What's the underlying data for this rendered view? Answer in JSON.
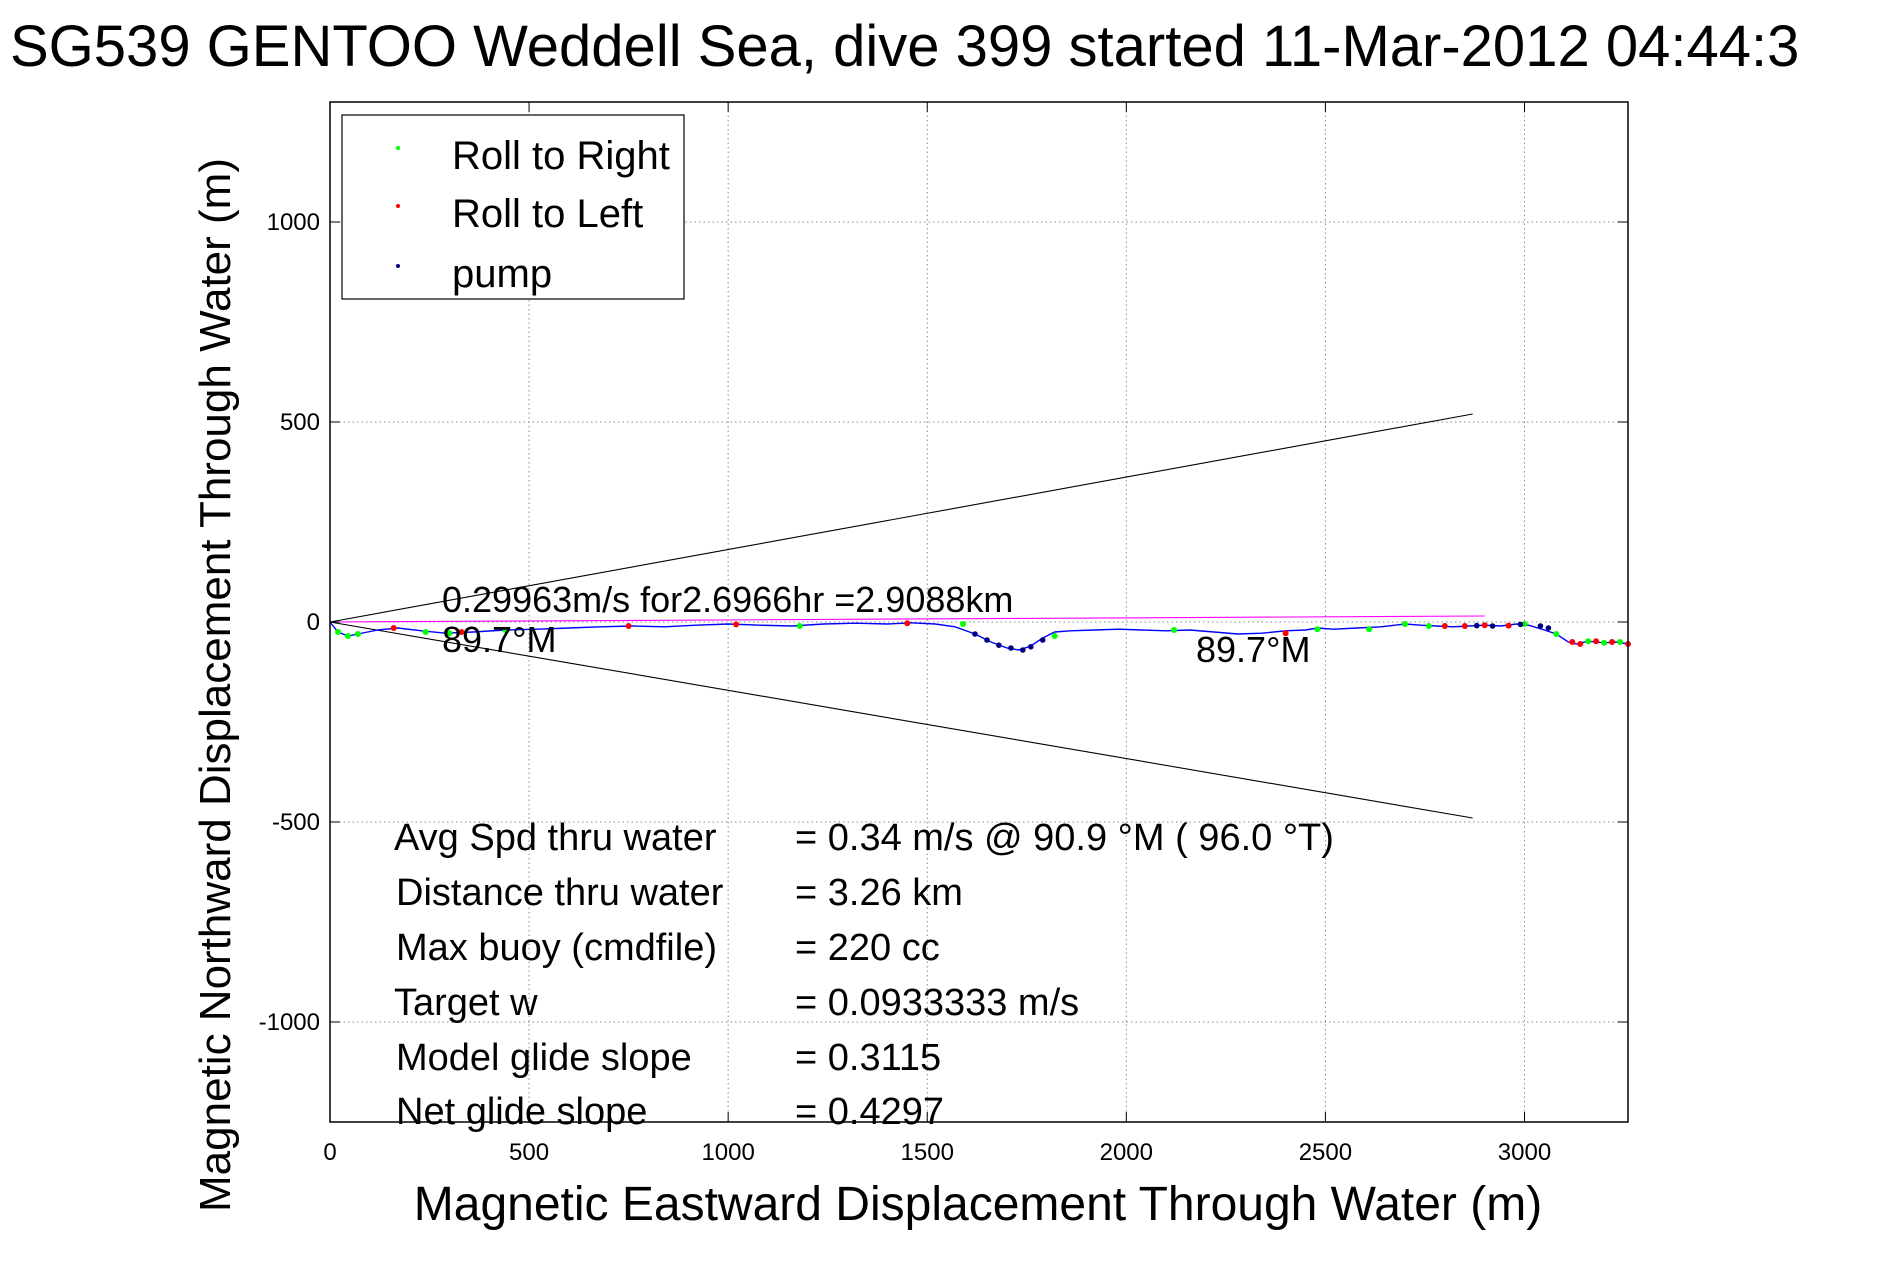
{
  "chart_data": {
    "type": "line",
    "title": "SG539 GENTOO Weddell Sea, dive 399 started 11-Mar-2012 04:44:3",
    "xlabel": "Magnetic Eastward Displacement Through Water (m)",
    "ylabel": "Magnetic Northward Displacement Through Water (m)",
    "xlim": [
      0,
      3260
    ],
    "ylim": [
      -1250,
      1300
    ],
    "xticks": [
      0,
      500,
      1000,
      1500,
      2000,
      2500,
      3000
    ],
    "yticks": [
      -1000,
      -500,
      0,
      500,
      1000
    ],
    "xtick_labels": [
      "0",
      "500",
      "1000",
      "1500",
      "2000",
      "2500",
      "3000"
    ],
    "ytick_labels": [
      "-1000",
      "-500",
      "0",
      "500",
      "1000"
    ],
    "grid": true,
    "legend_position": "top-left",
    "legend": [
      {
        "label": "Roll to Right",
        "color": "#00ff00"
      },
      {
        "label": "Roll to Left",
        "color": "#ff0000"
      },
      {
        "label": "pump",
        "color": "#000080"
      }
    ],
    "series": [
      {
        "role": "track",
        "color": "#0000ff",
        "x": [
          0,
          20,
          45,
          70,
          120,
          170,
          230,
          290,
          360,
          440,
          520,
          600,
          680,
          760,
          840,
          920,
          1000,
          1080,
          1160,
          1240,
          1320,
          1400,
          1460,
          1520,
          1570,
          1620,
          1660,
          1700,
          1730,
          1760,
          1790,
          1820,
          1860,
          1920,
          1980,
          2040,
          2100,
          2160,
          2220,
          2280,
          2340,
          2400,
          2450,
          2480,
          2520,
          2580,
          2640,
          2700,
          2740,
          2780,
          2820,
          2860,
          2900,
          2940,
          2980,
          3010,
          3050,
          3080,
          3110,
          3130,
          3160,
          3200,
          3230,
          3260
        ],
        "y": [
          0,
          -25,
          -35,
          -30,
          -20,
          -15,
          -22,
          -28,
          -25,
          -20,
          -18,
          -15,
          -12,
          -10,
          -12,
          -8,
          -5,
          -8,
          -10,
          -5,
          -3,
          -5,
          -2,
          -5,
          -12,
          -30,
          -50,
          -65,
          -70,
          -60,
          -40,
          -25,
          -22,
          -20,
          -18,
          -20,
          -22,
          -20,
          -25,
          -30,
          -28,
          -22,
          -20,
          -15,
          -18,
          -15,
          -12,
          -5,
          -8,
          -10,
          -12,
          -10,
          -8,
          -10,
          -5,
          -8,
          -20,
          -30,
          -50,
          -55,
          -48,
          -52,
          -50,
          -55
        ]
      },
      {
        "role": "roll-right-points",
        "color": "#00ff00",
        "x": [
          20,
          45,
          70,
          240,
          300,
          440,
          1180,
          1590,
          1820,
          2120,
          2480,
          2610,
          2700,
          2760,
          3000,
          3080,
          3160,
          3200,
          3240
        ],
        "y": [
          -25,
          -35,
          -30,
          -25,
          -28,
          -20,
          -10,
          -5,
          -35,
          -20,
          -18,
          -18,
          -5,
          -10,
          -5,
          -30,
          -48,
          -52,
          -50
        ]
      },
      {
        "role": "roll-left-points",
        "color": "#ff0000",
        "x": [
          160,
          330,
          750,
          1020,
          1450,
          2400,
          2800,
          2850,
          2900,
          2960,
          3120,
          3140,
          3180,
          3220,
          3260
        ],
        "y": [
          -15,
          -25,
          -10,
          -6,
          -3,
          -28,
          -10,
          -10,
          -8,
          -9,
          -50,
          -55,
          -48,
          -50,
          -55
        ]
      },
      {
        "role": "pump-points",
        "color": "#000080",
        "x": [
          1620,
          1650,
          1680,
          1710,
          1740,
          1760,
          1790,
          2880,
          2920,
          2990,
          3040,
          3060
        ],
        "y": [
          -30,
          -45,
          -58,
          -65,
          -70,
          -62,
          -45,
          -9,
          -10,
          -6,
          -10,
          -15
        ]
      },
      {
        "role": "heading-line",
        "color": "#ff00ff",
        "x": [
          0,
          2900
        ],
        "y": [
          0,
          15
        ]
      },
      {
        "role": "cone-upper",
        "color": "#000000",
        "x": [
          0,
          2870
        ],
        "y": [
          0,
          520
        ]
      },
      {
        "role": "cone-lower",
        "color": "#000000",
        "x": [
          0,
          2870
        ],
        "y": [
          0,
          -490
        ]
      }
    ],
    "annotations": {
      "speed_line": "0.29963m/s for2.6966hr =2.9088km",
      "heading_left": "89.7°M",
      "heading_right": "89.7°M"
    },
    "stats": [
      {
        "label": "Avg Spd thru water",
        "value": "=  0.34 m/s @  90.9 °M ( 96.0 °T)"
      },
      {
        "label": "Distance thru water",
        "value": "=  3.26 km"
      },
      {
        "label": "Max buoy (cmdfile)",
        "value": "= 220 cc"
      },
      {
        "label": "Target w",
        "value": "= 0.0933333 m/s"
      },
      {
        "label": "Model glide slope",
        "value": "= 0.3115"
      },
      {
        "label": "Net glide slope",
        "value": "= 0.4297"
      }
    ]
  }
}
